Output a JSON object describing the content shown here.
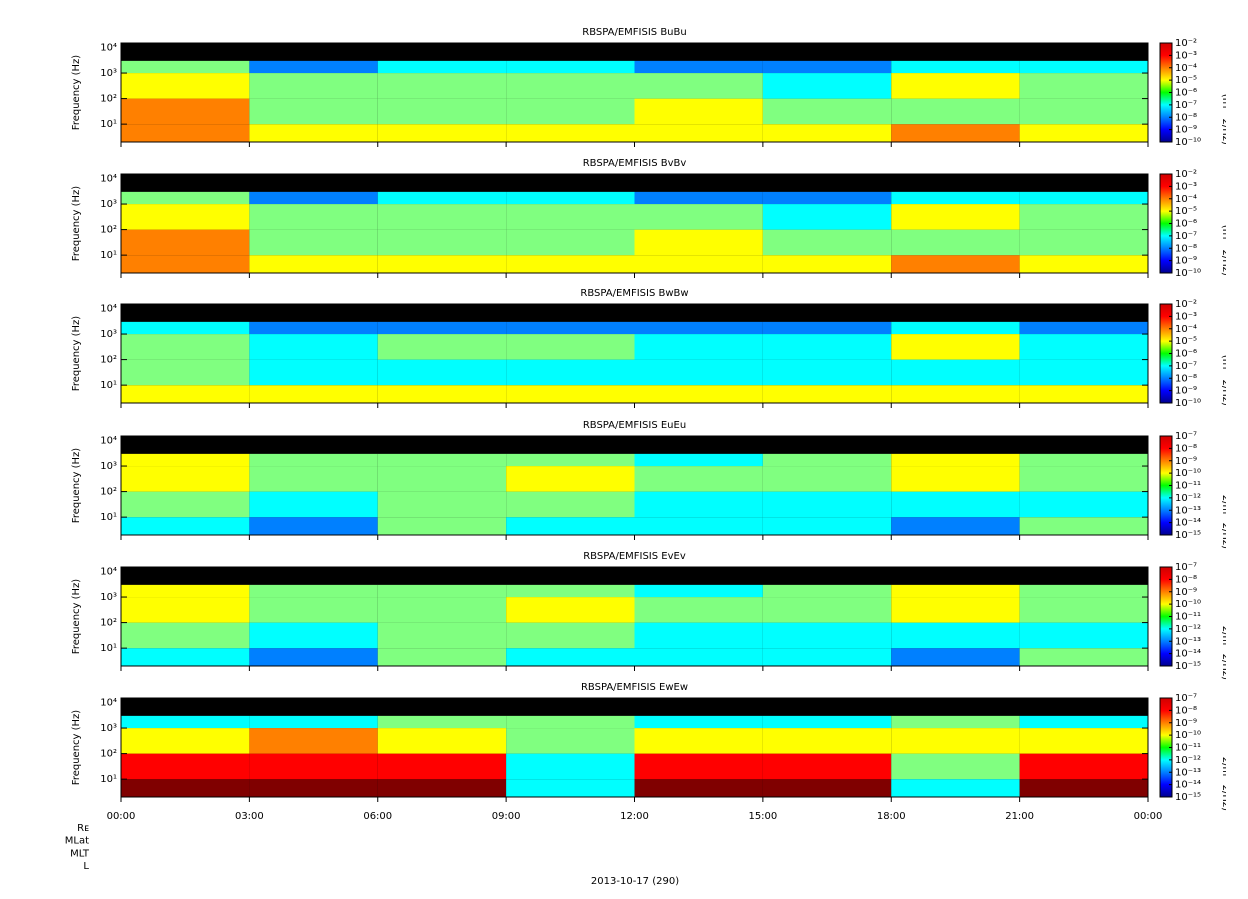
{
  "time_axis": {
    "xlim": [
      0,
      24
    ],
    "xticks": [
      {
        "value": 0,
        "label": "00:00"
      },
      {
        "value": 3,
        "label": "03:00"
      },
      {
        "value": 6,
        "label": "06:00"
      },
      {
        "value": 9,
        "label": "09:00"
      },
      {
        "value": 12,
        "label": "12:00"
      },
      {
        "value": 15,
        "label": "15:00"
      },
      {
        "value": 18,
        "label": "18:00"
      },
      {
        "value": 21,
        "label": "21:00"
      },
      {
        "value": 24,
        "label": "00:00"
      }
    ],
    "label": "2013-10-17 (290)",
    "ephemeris": [
      "Rᴇ",
      "MLat",
      "MLT",
      "L"
    ]
  },
  "chart_data": [
    {
      "type": "spectrogram",
      "title": "RBSPA/EMFISIS  BuBu",
      "ylabel": "Frequency (Hz)",
      "zlabel": "amplitude (nT^2/Hz)",
      "log_y": true,
      "ylim": [
        2,
        15000
      ],
      "yticks": [
        {
          "value": 10,
          "label": "10¹"
        },
        {
          "value": 100,
          "label": "10²"
        },
        {
          "value": 1000,
          "label": "10³"
        },
        {
          "value": 10000,
          "label": "10⁴"
        }
      ],
      "zlim": [
        1e-10,
        0.01
      ],
      "zticks": [
        {
          "value": 0.01,
          "label": "10⁻²"
        },
        {
          "value": 0.001,
          "label": "10⁻³"
        },
        {
          "value": 0.0001,
          "label": "10⁻⁴"
        },
        {
          "value": 1e-05,
          "label": "10⁻⁵"
        },
        {
          "value": 1e-06,
          "label": "10⁻⁶"
        },
        {
          "value": 1e-07,
          "label": "10⁻⁷"
        },
        {
          "value": 1e-08,
          "label": "10⁻⁸"
        },
        {
          "value": 1e-09,
          "label": "10⁻⁹"
        },
        {
          "value": 1e-10,
          "label": "10⁻¹⁰"
        }
      ],
      "xbins": [
        0,
        3,
        6,
        9,
        12,
        15,
        18,
        21,
        24
      ],
      "ybins": [
        2,
        10,
        100,
        1000,
        3000
      ],
      "values": [
        [
          0.0001,
          1e-05,
          1e-05,
          1e-05,
          1e-05,
          1e-05,
          0.0001,
          1e-05
        ],
        [
          0.0001,
          1e-06,
          1e-06,
          1e-06,
          1e-05,
          1e-06,
          1e-06,
          1e-06
        ],
        [
          1e-05,
          1e-06,
          1e-06,
          1e-06,
          1e-06,
          1e-07,
          1e-05,
          1e-06
        ],
        [
          1e-06,
          1e-08,
          1e-07,
          1e-07,
          1e-08,
          1e-08,
          1e-07,
          1e-07
        ]
      ]
    },
    {
      "type": "spectrogram",
      "title": "RBSPA/EMFISIS  BvBv",
      "ylabel": "Frequency (Hz)",
      "zlabel": "amplitude (nT^2/Hz)",
      "log_y": true,
      "ylim": [
        2,
        15000
      ],
      "yticks": [
        {
          "value": 10,
          "label": "10¹"
        },
        {
          "value": 100,
          "label": "10²"
        },
        {
          "value": 1000,
          "label": "10³"
        },
        {
          "value": 10000,
          "label": "10⁴"
        }
      ],
      "zlim": [
        1e-10,
        0.01
      ],
      "zticks": [
        {
          "value": 0.01,
          "label": "10⁻²"
        },
        {
          "value": 0.001,
          "label": "10⁻³"
        },
        {
          "value": 0.0001,
          "label": "10⁻⁴"
        },
        {
          "value": 1e-05,
          "label": "10⁻⁵"
        },
        {
          "value": 1e-06,
          "label": "10⁻⁶"
        },
        {
          "value": 1e-07,
          "label": "10⁻⁷"
        },
        {
          "value": 1e-08,
          "label": "10⁻⁸"
        },
        {
          "value": 1e-09,
          "label": "10⁻⁹"
        },
        {
          "value": 1e-10,
          "label": "10⁻¹⁰"
        }
      ],
      "xbins": [
        0,
        3,
        6,
        9,
        12,
        15,
        18,
        21,
        24
      ],
      "ybins": [
        2,
        10,
        100,
        1000,
        3000
      ],
      "values": [
        [
          0.0001,
          1e-05,
          1e-05,
          1e-05,
          1e-05,
          1e-05,
          0.0001,
          1e-05
        ],
        [
          0.0001,
          1e-06,
          1e-06,
          1e-06,
          1e-05,
          1e-06,
          1e-06,
          1e-06
        ],
        [
          1e-05,
          1e-06,
          1e-06,
          1e-06,
          1e-06,
          1e-07,
          1e-05,
          1e-06
        ],
        [
          1e-06,
          1e-08,
          1e-07,
          1e-07,
          1e-08,
          1e-08,
          1e-07,
          1e-07
        ]
      ]
    },
    {
      "type": "spectrogram",
      "title": "RBSPA/EMFISIS  BwBw",
      "ylabel": "Frequency (Hz)",
      "zlabel": "amplitude (nT^2/Hz)",
      "log_y": true,
      "ylim": [
        2,
        15000
      ],
      "yticks": [
        {
          "value": 10,
          "label": "10¹"
        },
        {
          "value": 100,
          "label": "10²"
        },
        {
          "value": 1000,
          "label": "10³"
        },
        {
          "value": 10000,
          "label": "10⁴"
        }
      ],
      "zlim": [
        1e-10,
        0.01
      ],
      "zticks": [
        {
          "value": 0.01,
          "label": "10⁻²"
        },
        {
          "value": 0.001,
          "label": "10⁻³"
        },
        {
          "value": 0.0001,
          "label": "10⁻⁴"
        },
        {
          "value": 1e-05,
          "label": "10⁻⁵"
        },
        {
          "value": 1e-06,
          "label": "10⁻⁶"
        },
        {
          "value": 1e-07,
          "label": "10⁻⁷"
        },
        {
          "value": 1e-08,
          "label": "10⁻⁸"
        },
        {
          "value": 1e-09,
          "label": "10⁻⁹"
        },
        {
          "value": 1e-10,
          "label": "10⁻¹⁰"
        }
      ],
      "xbins": [
        0,
        3,
        6,
        9,
        12,
        15,
        18,
        21,
        24
      ],
      "ybins": [
        2,
        10,
        100,
        1000,
        3000
      ],
      "values": [
        [
          1e-05,
          1e-05,
          1e-05,
          1e-05,
          1e-05,
          1e-05,
          1e-05,
          1e-05
        ],
        [
          1e-06,
          1e-07,
          1e-07,
          1e-07,
          1e-07,
          1e-07,
          1e-07,
          1e-07
        ],
        [
          1e-06,
          1e-07,
          1e-06,
          1e-06,
          1e-07,
          1e-07,
          1e-05,
          1e-07
        ],
        [
          1e-07,
          1e-08,
          1e-08,
          1e-08,
          1e-08,
          1e-08,
          1e-07,
          1e-08
        ]
      ]
    },
    {
      "type": "spectrogram",
      "title": "RBSPA/EMFISIS  EuEu",
      "ylabel": "Frequency (Hz)",
      "zlabel": "amplitude (V^2/m^2/Hz)",
      "log_y": true,
      "ylim": [
        2,
        15000
      ],
      "yticks": [
        {
          "value": 10,
          "label": "10¹"
        },
        {
          "value": 100,
          "label": "10²"
        },
        {
          "value": 1000,
          "label": "10³"
        },
        {
          "value": 10000,
          "label": "10⁴"
        }
      ],
      "zlim": [
        1e-15,
        1e-07
      ],
      "zticks": [
        {
          "value": 1e-07,
          "label": "10⁻⁷"
        },
        {
          "value": 1e-08,
          "label": "10⁻⁸"
        },
        {
          "value": 1e-09,
          "label": "10⁻⁹"
        },
        {
          "value": 1e-10,
          "label": "10⁻¹⁰"
        },
        {
          "value": 1e-11,
          "label": "10⁻¹¹"
        },
        {
          "value": 1e-12,
          "label": "10⁻¹²"
        },
        {
          "value": 1e-13,
          "label": "10⁻¹³"
        },
        {
          "value": 1e-14,
          "label": "10⁻¹⁴"
        },
        {
          "value": 1e-15,
          "label": "10⁻¹⁵"
        }
      ],
      "xbins": [
        0,
        3,
        6,
        9,
        12,
        15,
        18,
        21,
        24
      ],
      "ybins": [
        2,
        10,
        100,
        1000,
        3000
      ],
      "values": [
        [
          1e-12,
          1e-13,
          1e-11,
          1e-12,
          1e-12,
          1e-12,
          1e-13,
          1e-11
        ],
        [
          1e-11,
          1e-12,
          1e-11,
          1e-11,
          1e-12,
          1e-12,
          1e-12,
          1e-12
        ],
        [
          1e-10,
          1e-11,
          1e-11,
          1e-10,
          1e-11,
          1e-11,
          1e-10,
          1e-11
        ],
        [
          1e-10,
          1e-11,
          1e-11,
          1e-11,
          1e-12,
          1e-11,
          1e-10,
          1e-11
        ]
      ]
    },
    {
      "type": "spectrogram",
      "title": "RBSPA/EMFISIS  EvEv",
      "ylabel": "Frequency (Hz)",
      "zlabel": "amplitude (V^2/m^2/Hz)",
      "log_y": true,
      "ylim": [
        2,
        15000
      ],
      "yticks": [
        {
          "value": 10,
          "label": "10¹"
        },
        {
          "value": 100,
          "label": "10²"
        },
        {
          "value": 1000,
          "label": "10³"
        },
        {
          "value": 10000,
          "label": "10⁴"
        }
      ],
      "zlim": [
        1e-15,
        1e-07
      ],
      "zticks": [
        {
          "value": 1e-07,
          "label": "10⁻⁷"
        },
        {
          "value": 1e-08,
          "label": "10⁻⁸"
        },
        {
          "value": 1e-09,
          "label": "10⁻⁹"
        },
        {
          "value": 1e-10,
          "label": "10⁻¹⁰"
        },
        {
          "value": 1e-11,
          "label": "10⁻¹¹"
        },
        {
          "value": 1e-12,
          "label": "10⁻¹²"
        },
        {
          "value": 1e-13,
          "label": "10⁻¹³"
        },
        {
          "value": 1e-14,
          "label": "10⁻¹⁴"
        },
        {
          "value": 1e-15,
          "label": "10⁻¹⁵"
        }
      ],
      "xbins": [
        0,
        3,
        6,
        9,
        12,
        15,
        18,
        21,
        24
      ],
      "ybins": [
        2,
        10,
        100,
        1000,
        3000
      ],
      "values": [
        [
          1e-12,
          1e-13,
          1e-11,
          1e-12,
          1e-12,
          1e-12,
          1e-13,
          1e-11
        ],
        [
          1e-11,
          1e-12,
          1e-11,
          1e-11,
          1e-12,
          1e-12,
          1e-12,
          1e-12
        ],
        [
          1e-10,
          1e-11,
          1e-11,
          1e-10,
          1e-11,
          1e-11,
          1e-10,
          1e-11
        ],
        [
          1e-10,
          1e-11,
          1e-11,
          1e-11,
          1e-12,
          1e-11,
          1e-10,
          1e-11
        ]
      ]
    },
    {
      "type": "spectrogram",
      "title": "RBSPA/EMFISIS  EwEw",
      "ylabel": "Frequency (Hz)",
      "zlabel": "amplitude (V^2/m^2/Hz)",
      "log_y": true,
      "ylim": [
        2,
        15000
      ],
      "yticks": [
        {
          "value": 10,
          "label": "10¹"
        },
        {
          "value": 100,
          "label": "10²"
        },
        {
          "value": 1000,
          "label": "10³"
        },
        {
          "value": 10000,
          "label": "10⁴"
        }
      ],
      "zlim": [
        1e-15,
        1e-07
      ],
      "zticks": [
        {
          "value": 1e-07,
          "label": "10⁻⁷"
        },
        {
          "value": 1e-08,
          "label": "10⁻⁸"
        },
        {
          "value": 1e-09,
          "label": "10⁻⁹"
        },
        {
          "value": 1e-10,
          "label": "10⁻¹⁰"
        },
        {
          "value": 1e-11,
          "label": "10⁻¹¹"
        },
        {
          "value": 1e-12,
          "label": "10⁻¹²"
        },
        {
          "value": 1e-13,
          "label": "10⁻¹³"
        },
        {
          "value": 1e-14,
          "label": "10⁻¹⁴"
        },
        {
          "value": 1e-15,
          "label": "10⁻¹⁵"
        }
      ],
      "xbins": [
        0,
        3,
        6,
        9,
        12,
        15,
        18,
        21,
        24
      ],
      "ybins": [
        2,
        10,
        100,
        1000,
        3000
      ],
      "values": [
        [
          1e-07,
          1e-07,
          1e-07,
          1e-12,
          1e-07,
          1e-07,
          1e-12,
          1e-07
        ],
        [
          1e-08,
          1e-08,
          1e-08,
          1e-12,
          1e-08,
          1e-08,
          1e-11,
          1e-08
        ],
        [
          1e-10,
          1e-09,
          1e-10,
          1e-11,
          1e-10,
          1e-10,
          1e-10,
          1e-10
        ],
        [
          1e-12,
          1e-12,
          1e-11,
          1e-11,
          1e-12,
          1e-12,
          1e-11,
          1e-12
        ]
      ]
    }
  ]
}
